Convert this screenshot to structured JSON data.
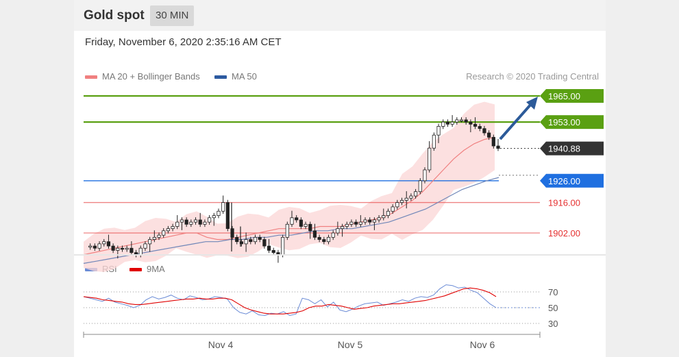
{
  "header": {
    "title": "Gold spot",
    "interval": "30 MIN"
  },
  "timestamp": "Friday, November 6, 2020 2:35:16 AM CET",
  "legend": {
    "ma20": {
      "label": "MA 20 + Bollinger Bands",
      "color": "#f08080"
    },
    "ma50": {
      "label": "MA 50",
      "color": "#2c5aa0"
    },
    "rsi": {
      "label": "RSI",
      "color": "#6a8bd6"
    },
    "ma9": {
      "label": "9MA",
      "color": "#e00000"
    }
  },
  "attribution": "Research © 2020 Trading Central",
  "chart_data": [
    {
      "type": "candlestick",
      "title": "Gold spot",
      "ylim": [
        1880,
        1972
      ],
      "x_ticks": [
        "Nov 4",
        "Nov 5",
        "Nov 6"
      ],
      "levels": [
        {
          "value": 1965.0,
          "label": "1965.00",
          "kind": "resistance",
          "color": "#5aa012"
        },
        {
          "value": 1953.0,
          "label": "1953.00",
          "kind": "resistance",
          "color": "#5aa012"
        },
        {
          "value": 1940.88,
          "label": "1940.88",
          "kind": "last",
          "color": "#333333"
        },
        {
          "value": 1926.0,
          "label": "1926.00",
          "kind": "pivot",
          "color": "#1f6fe0"
        },
        {
          "value": 1916.0,
          "label": "1916.00",
          "kind": "support",
          "color": "#e53030"
        },
        {
          "value": 1902.0,
          "label": "1902.00",
          "kind": "support",
          "color": "#e53030"
        }
      ],
      "price_path": [
        1895.5,
        1896,
        1895,
        1897,
        1898,
        1896,
        1894,
        1895,
        1894.5,
        1895,
        1893,
        1892,
        1895,
        1897,
        1899,
        1900,
        1901,
        1903,
        1904,
        1905,
        1907,
        1908,
        1906,
        1907,
        1908,
        1906,
        1907,
        1909,
        1910,
        1912,
        1916,
        1904,
        1900,
        1898,
        1897,
        1899,
        1898,
        1900,
        1899,
        1896,
        1894,
        1893,
        1892,
        1900,
        1906,
        1909,
        1908,
        1905,
        1906,
        1903,
        1900,
        1899,
        1898,
        1900,
        1902,
        1904,
        1905,
        1906,
        1907,
        1906,
        1907,
        1908,
        1907,
        1908,
        1909,
        1910,
        1912,
        1914,
        1916,
        1917,
        1918,
        1919,
        1921,
        1926,
        1931,
        1941,
        1947,
        1951,
        1953,
        1952,
        1953,
        1954,
        1954,
        1953,
        1952,
        1951,
        1950,
        1948,
        1946,
        1942,
        1940.88
      ],
      "ma20": [
        1892,
        1893,
        1894,
        1895,
        1896,
        1897,
        1898,
        1899,
        1900,
        1901,
        1902,
        1902,
        1900,
        1899,
        1899,
        1900,
        1901,
        1902,
        1903,
        1904,
        1904,
        1904,
        1904,
        1905,
        1905,
        1905,
        1906,
        1907,
        1908,
        1909,
        1911,
        1914,
        1917,
        1921,
        1926,
        1931,
        1936,
        1940,
        1943,
        1945,
        1946
      ],
      "ma50": [
        1888,
        1889,
        1890,
        1891,
        1892,
        1893,
        1894,
        1895,
        1896,
        1897,
        1898,
        1898,
        1899,
        1899,
        1900,
        1900,
        1901,
        1901,
        1902,
        1903,
        1903,
        1904,
        1904,
        1905,
        1906,
        1907,
        1909,
        1911,
        1913,
        1916,
        1919,
        1922,
        1924,
        1926,
        1927.5
      ],
      "rsi_ticks": [
        30,
        50,
        70
      ],
      "rsi_ylim": [
        20,
        85
      ],
      "rsi": [
        64,
        62,
        60,
        58,
        62,
        57,
        55,
        53,
        50,
        53,
        60,
        64,
        61,
        63,
        66,
        62,
        60,
        65,
        63,
        60,
        61,
        64,
        63,
        61,
        50,
        44,
        42,
        46,
        41,
        40,
        43,
        42,
        45,
        40,
        42,
        62,
        60,
        55,
        60,
        51,
        57,
        47,
        45,
        48,
        52,
        55,
        56,
        57,
        53,
        55,
        57,
        60,
        58,
        62,
        64,
        63,
        66,
        74,
        79,
        78,
        75,
        76,
        72,
        69,
        62,
        55,
        50
      ],
      "rsi_ma9": [
        64,
        63,
        62,
        60,
        59,
        58,
        57,
        55,
        54,
        54,
        55,
        56,
        57,
        58,
        59,
        60,
        61,
        61,
        62,
        61,
        61,
        62,
        62,
        60,
        55,
        50,
        47,
        45,
        43,
        42,
        42,
        42,
        43,
        44,
        46,
        50,
        52,
        52,
        54,
        53,
        52,
        50,
        48,
        49,
        50,
        52,
        53,
        54,
        55,
        55,
        56,
        57,
        58,
        59,
        61,
        63,
        65,
        68,
        71,
        74,
        75,
        74,
        72,
        69,
        64
      ]
    }
  ]
}
